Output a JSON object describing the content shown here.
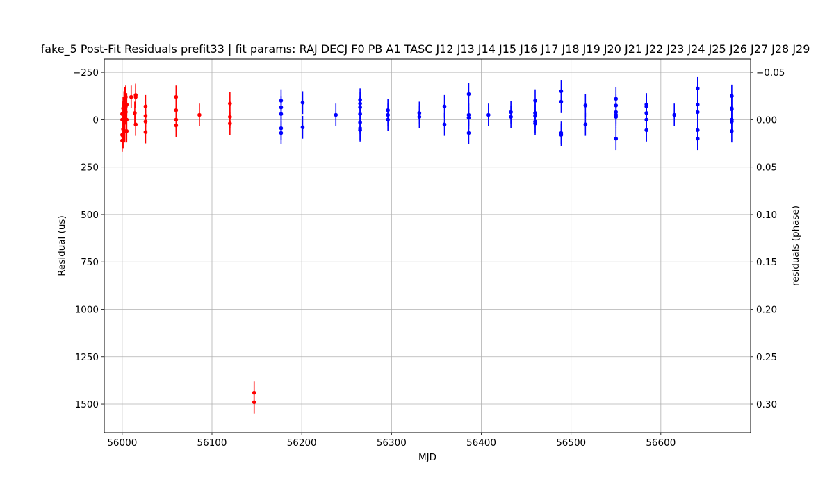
{
  "chart_data": {
    "type": "scatter",
    "title": "fake_5 Post-Fit Residuals prefit33 | fit params: RAJ DECJ F0 PB A1 TASC J12 J13 J14 J15 J16 J17 J18 J19 J20 J21 J22 J23 J24 J25 J26 J27 J28 J29",
    "xlabel": "MJD",
    "ylabel": "Residual (us)",
    "ylabel_right": "residuals (phase)",
    "xlim": [
      55980,
      56700
    ],
    "ylim": [
      1650,
      -320
    ],
    "ylim_right": [
      0.33,
      -0.064
    ],
    "y_inverted": true,
    "grid": true,
    "x_ticks": [
      {
        "value": 56000,
        "label": "56000"
      },
      {
        "value": 56100,
        "label": "56100"
      },
      {
        "value": 56200,
        "label": "56200"
      },
      {
        "value": 56300,
        "label": "56300"
      },
      {
        "value": 56400,
        "label": "56400"
      },
      {
        "value": 56500,
        "label": "56500"
      },
      {
        "value": 56600,
        "label": "56600"
      }
    ],
    "y_ticks": [
      {
        "value": -250,
        "label": "−250"
      },
      {
        "value": 0,
        "label": "0"
      },
      {
        "value": 250,
        "label": "250"
      },
      {
        "value": 500,
        "label": "500"
      },
      {
        "value": 750,
        "label": "750"
      },
      {
        "value": 1000,
        "label": "1000"
      },
      {
        "value": 1250,
        "label": "1250"
      },
      {
        "value": 1500,
        "label": "1500"
      }
    ],
    "y_right_ticks": [
      {
        "value": -0.05,
        "label": "−0.05"
      },
      {
        "value": 0.0,
        "label": "0.00"
      },
      {
        "value": 0.05,
        "label": "0.05"
      },
      {
        "value": 0.1,
        "label": "0.10"
      },
      {
        "value": 0.15,
        "label": "0.15"
      },
      {
        "value": 0.2,
        "label": "0.20"
      },
      {
        "value": 0.25,
        "label": "0.25"
      },
      {
        "value": 0.3,
        "label": "0.30"
      }
    ],
    "series": [
      {
        "color": "#ff0000",
        "points": [
          {
            "x": 56000,
            "y": 0,
            "err": 60
          },
          {
            "x": 56000,
            "y": -30,
            "err": 60
          },
          {
            "x": 56000,
            "y": 80,
            "err": 60
          },
          {
            "x": 56000,
            "y": 110,
            "err": 60
          },
          {
            "x": 56001,
            "y": -60,
            "err": 60
          },
          {
            "x": 56001,
            "y": 50,
            "err": 60
          },
          {
            "x": 56001,
            "y": 90,
            "err": 60
          },
          {
            "x": 56002,
            "y": -90,
            "err": 60
          },
          {
            "x": 56002,
            "y": -20,
            "err": 60
          },
          {
            "x": 56002,
            "y": 20,
            "err": 60
          },
          {
            "x": 56003,
            "y": -110,
            "err": 60
          },
          {
            "x": 56003,
            "y": -50,
            "err": 60
          },
          {
            "x": 56003,
            "y": 60,
            "err": 60
          },
          {
            "x": 56004,
            "y": -120,
            "err": 60
          },
          {
            "x": 56004,
            "y": -70,
            "err": 60
          },
          {
            "x": 56004,
            "y": -40,
            "err": 60
          },
          {
            "x": 56005,
            "y": 0,
            "err": 60
          },
          {
            "x": 56005,
            "y": 60,
            "err": 60
          },
          {
            "x": 56005,
            "y": -80,
            "err": 60
          },
          {
            "x": 56010,
            "y": -120,
            "err": 60
          },
          {
            "x": 56014,
            "y": -35,
            "err": 60
          },
          {
            "x": 56015,
            "y": -120,
            "err": 60
          },
          {
            "x": 56015,
            "y": -130,
            "err": 60
          },
          {
            "x": 56015,
            "y": 25,
            "err": 60
          },
          {
            "x": 56026,
            "y": -70,
            "err": 60
          },
          {
            "x": 56026,
            "y": -20,
            "err": 60
          },
          {
            "x": 56026,
            "y": 10,
            "err": 60
          },
          {
            "x": 56026,
            "y": 65,
            "err": 60
          },
          {
            "x": 56060,
            "y": -120,
            "err": 60
          },
          {
            "x": 56060,
            "y": -50,
            "err": 60
          },
          {
            "x": 56060,
            "y": 0,
            "err": 60
          },
          {
            "x": 56060,
            "y": 30,
            "err": 60
          },
          {
            "x": 56086,
            "y": -25,
            "err": 60
          },
          {
            "x": 56120,
            "y": -85,
            "err": 60
          },
          {
            "x": 56120,
            "y": -15,
            "err": 60
          },
          {
            "x": 56120,
            "y": 20,
            "err": 60
          },
          {
            "x": 56147,
            "y": 1440,
            "err": 60
          },
          {
            "x": 56147,
            "y": 1490,
            "err": 60
          }
        ]
      },
      {
        "color": "#0000ff",
        "points": [
          {
            "x": 56177,
            "y": -100,
            "err": 60
          },
          {
            "x": 56177,
            "y": -65,
            "err": 60
          },
          {
            "x": 56177,
            "y": -30,
            "err": 60
          },
          {
            "x": 56177,
            "y": 45,
            "err": 60
          },
          {
            "x": 56177,
            "y": 70,
            "err": 60
          },
          {
            "x": 56201,
            "y": -90,
            "err": 60
          },
          {
            "x": 56201,
            "y": 40,
            "err": 60
          },
          {
            "x": 56238,
            "y": -25,
            "err": 60
          },
          {
            "x": 56265,
            "y": -105,
            "err": 60
          },
          {
            "x": 56265,
            "y": -85,
            "err": 60
          },
          {
            "x": 56265,
            "y": -65,
            "err": 60
          },
          {
            "x": 56265,
            "y": -30,
            "err": 60
          },
          {
            "x": 56265,
            "y": 15,
            "err": 60
          },
          {
            "x": 56265,
            "y": 45,
            "err": 60
          },
          {
            "x": 56265,
            "y": 55,
            "err": 60
          },
          {
            "x": 56296,
            "y": -50,
            "err": 60
          },
          {
            "x": 56296,
            "y": -25,
            "err": 60
          },
          {
            "x": 56296,
            "y": 0,
            "err": 60
          },
          {
            "x": 56331,
            "y": -35,
            "err": 60
          },
          {
            "x": 56331,
            "y": -15,
            "err": 60
          },
          {
            "x": 56359,
            "y": -70,
            "err": 60
          },
          {
            "x": 56359,
            "y": 25,
            "err": 60
          },
          {
            "x": 56386,
            "y": -135,
            "err": 60
          },
          {
            "x": 56386,
            "y": -25,
            "err": 60
          },
          {
            "x": 56386,
            "y": -10,
            "err": 60
          },
          {
            "x": 56386,
            "y": 70,
            "err": 60
          },
          {
            "x": 56408,
            "y": -25,
            "err": 60
          },
          {
            "x": 56433,
            "y": -40,
            "err": 60
          },
          {
            "x": 56433,
            "y": -15,
            "err": 60
          },
          {
            "x": 56460,
            "y": -100,
            "err": 60
          },
          {
            "x": 56460,
            "y": -35,
            "err": 60
          },
          {
            "x": 56460,
            "y": -20,
            "err": 60
          },
          {
            "x": 56460,
            "y": 10,
            "err": 60
          },
          {
            "x": 56460,
            "y": 20,
            "err": 60
          },
          {
            "x": 56489,
            "y": -150,
            "err": 60
          },
          {
            "x": 56489,
            "y": -95,
            "err": 60
          },
          {
            "x": 56489,
            "y": 70,
            "err": 60
          },
          {
            "x": 56489,
            "y": 80,
            "err": 60
          },
          {
            "x": 56516,
            "y": -75,
            "err": 60
          },
          {
            "x": 56516,
            "y": 25,
            "err": 60
          },
          {
            "x": 56550,
            "y": -110,
            "err": 60
          },
          {
            "x": 56550,
            "y": -75,
            "err": 60
          },
          {
            "x": 56550,
            "y": -40,
            "err": 60
          },
          {
            "x": 56550,
            "y": -25,
            "err": 60
          },
          {
            "x": 56550,
            "y": -15,
            "err": 60
          },
          {
            "x": 56550,
            "y": 100,
            "err": 60
          },
          {
            "x": 56584,
            "y": -80,
            "err": 60
          },
          {
            "x": 56584,
            "y": -70,
            "err": 60
          },
          {
            "x": 56584,
            "y": -35,
            "err": 60
          },
          {
            "x": 56584,
            "y": 0,
            "err": 60
          },
          {
            "x": 56584,
            "y": 55,
            "err": 60
          },
          {
            "x": 56615,
            "y": -25,
            "err": 60
          },
          {
            "x": 56641,
            "y": -165,
            "err": 60
          },
          {
            "x": 56641,
            "y": -80,
            "err": 60
          },
          {
            "x": 56641,
            "y": -40,
            "err": 60
          },
          {
            "x": 56641,
            "y": 55,
            "err": 60
          },
          {
            "x": 56641,
            "y": 100,
            "err": 60
          },
          {
            "x": 56679,
            "y": -125,
            "err": 60
          },
          {
            "x": 56679,
            "y": -55,
            "err": 60
          },
          {
            "x": 56679,
            "y": -60,
            "err": 60
          },
          {
            "x": 56679,
            "y": 0,
            "err": 60
          },
          {
            "x": 56679,
            "y": 10,
            "err": 60
          },
          {
            "x": 56679,
            "y": 60,
            "err": 60
          }
        ]
      }
    ]
  }
}
